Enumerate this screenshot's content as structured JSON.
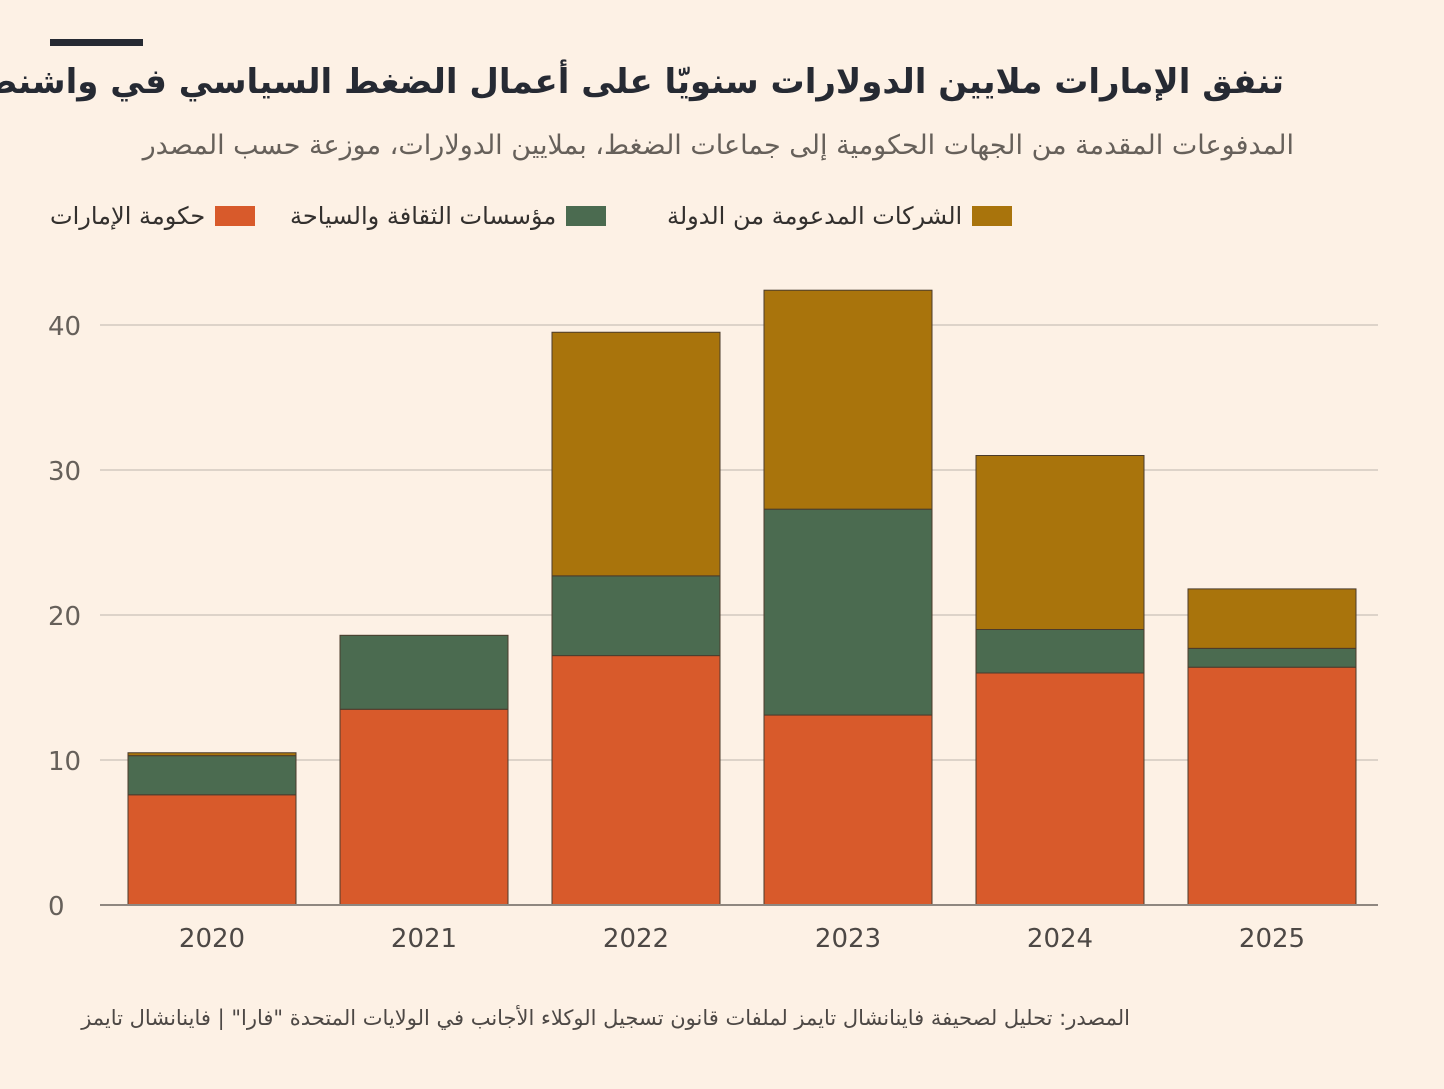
{
  "header": {
    "title": "تنفق الإمارات ملايين الدولارات سنويّا على أعمال الضغط السياسي في واشنطن",
    "subtitle": "المدفوعات المقدمة من الجهات الحكومية إلى جماعات الضغط، بملايين الدولارات، موزعة حسب المصدر"
  },
  "footer": {
    "source": "المصدر: تحليل لصحيفة فاينانشال تايمز لملفات قانون تسجيل الوكلاء الأجانب في الولايات المتحدة \"فارا\" | فاينانشال تايمز"
  },
  "colors": {
    "background": "#fdf1e5",
    "uae_government": "#d85a2b",
    "culture_tourism": "#4b6b50",
    "state_companies": "#a9740c",
    "grid": "#ddd3c9",
    "axis": "#8f8780"
  },
  "chart_data": {
    "type": "bar",
    "stacked": true,
    "categories": [
      "2020",
      "2021",
      "2022",
      "2023",
      "2024",
      "2025"
    ],
    "series": [
      {
        "name": "حكومة الإمارات",
        "color": "#d85a2b",
        "values": [
          7.6,
          13.5,
          17.2,
          13.1,
          16.0,
          16.4
        ]
      },
      {
        "name": "مؤسسات الثقافة والسياحة",
        "color": "#4b6b50",
        "values": [
          2.7,
          5.1,
          5.5,
          14.2,
          3.0,
          1.3
        ]
      },
      {
        "name": "الشركات المدعومة من الدولة",
        "color": "#a9740c",
        "values": [
          0.2,
          0,
          16.8,
          15.1,
          12.0,
          4.1
        ]
      }
    ],
    "yticks": [
      0,
      10,
      20,
      30,
      40
    ],
    "ylim": [
      0,
      40
    ],
    "grid": true,
    "legend_position": "top"
  }
}
